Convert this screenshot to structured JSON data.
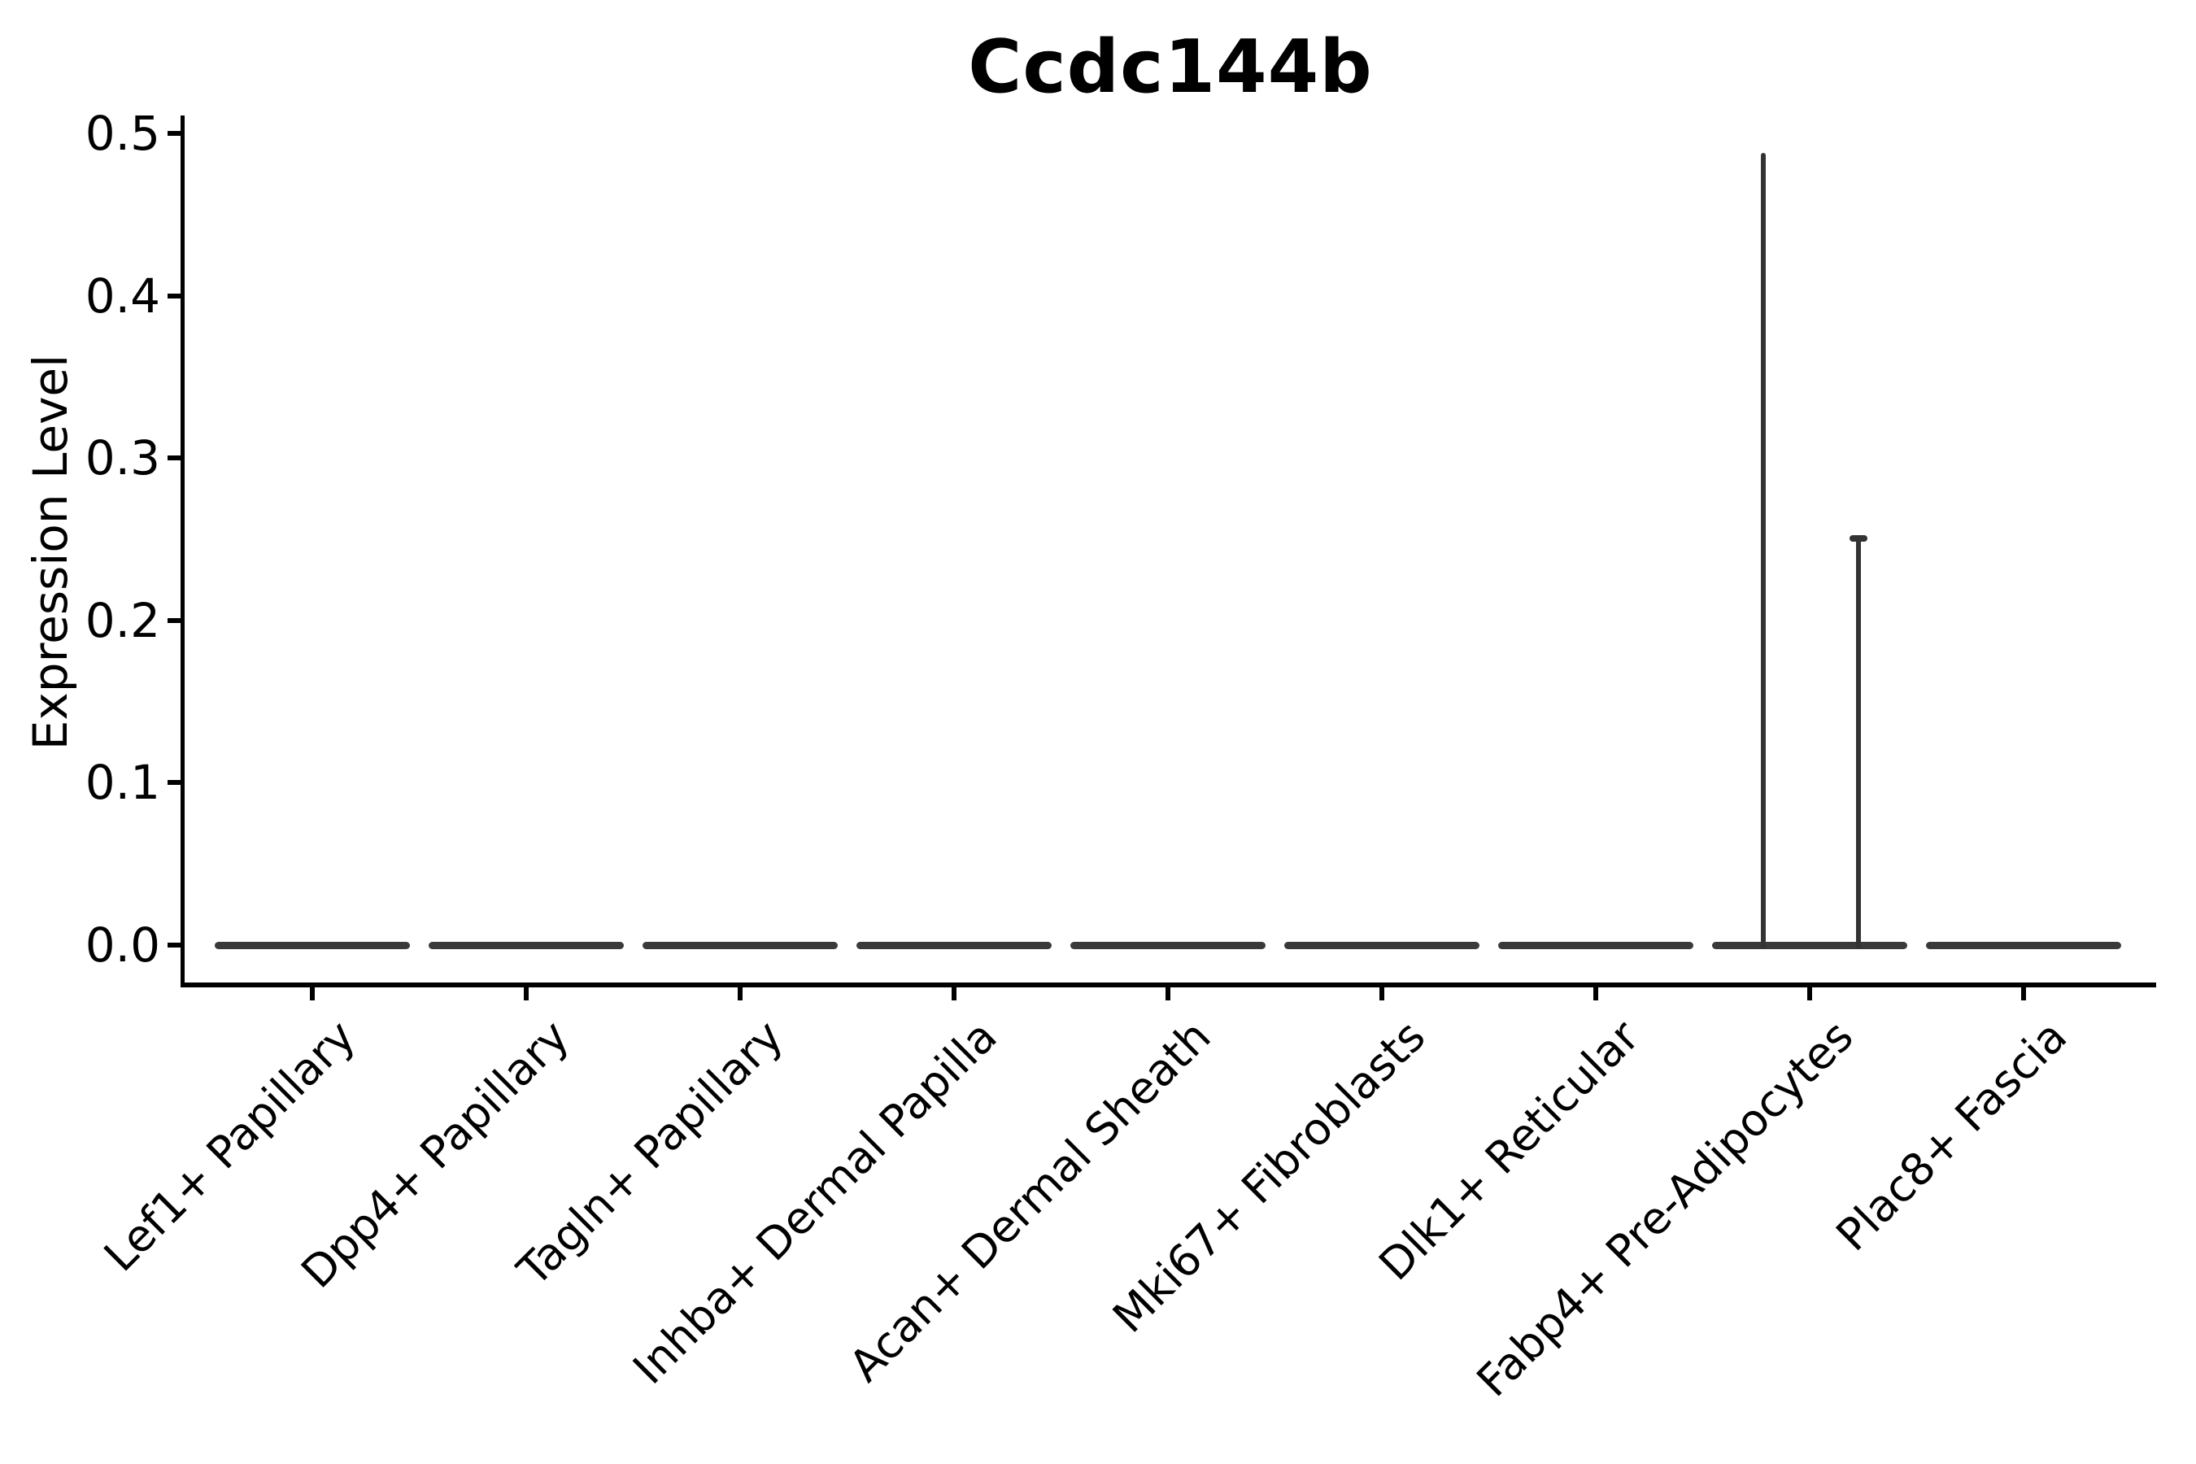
{
  "figure": {
    "title": "Ccdc144b"
  },
  "chart_data": {
    "type": "violin",
    "title": "Ccdc144b",
    "xlabel": "",
    "ylabel": "Expression Level",
    "ylim": [
      0.0,
      0.5
    ],
    "yticks": [
      0.0,
      0.1,
      0.2,
      0.3,
      0.4,
      0.5
    ],
    "ytick_labels": [
      "0.0",
      "0.1",
      "0.2",
      "0.3",
      "0.4",
      "0.5"
    ],
    "grid": false,
    "legend": "none",
    "x_tick_rotation_degrees": 45,
    "categories": [
      "Lef1+ Papillary",
      "Dpp4+ Papillary",
      "Tagln+ Papillary",
      "Inhba+ Dermal Papilla",
      "Acan+ Dermal Sheath",
      "Mki67+ Fibroblasts",
      "Dlk1+ Reticular",
      "Fabp4+ Pre-Adipocytes",
      "Plac8+ Fascia"
    ],
    "violins": [
      {
        "category": "Lef1+ Papillary",
        "baseline_value": 0.0,
        "max_expression": 0.0,
        "spikes": []
      },
      {
        "category": "Dpp4+ Papillary",
        "baseline_value": 0.0,
        "max_expression": 0.0,
        "spikes": []
      },
      {
        "category": "Tagln+ Papillary",
        "baseline_value": 0.0,
        "max_expression": 0.0,
        "spikes": []
      },
      {
        "category": "Inhba+ Dermal Papilla",
        "baseline_value": 0.0,
        "max_expression": 0.0,
        "spikes": []
      },
      {
        "category": "Acan+ Dermal Sheath",
        "baseline_value": 0.0,
        "max_expression": 0.0,
        "spikes": []
      },
      {
        "category": "Mki67+ Fibroblasts",
        "baseline_value": 0.0,
        "max_expression": 0.0,
        "spikes": []
      },
      {
        "category": "Dlk1+ Reticular",
        "baseline_value": 0.0,
        "max_expression": 0.0,
        "spikes": []
      },
      {
        "category": "Fabp4+ Pre-Adipocytes",
        "baseline_value": 0.0,
        "max_expression": 0.49,
        "spikes": [
          {
            "value": 0.488,
            "x_offset": -57,
            "cap": false
          },
          {
            "value": 0.25,
            "x_offset": 60,
            "cap": true
          }
        ]
      },
      {
        "category": "Plac8+ Fascia",
        "baseline_value": 0.0,
        "max_expression": 0.0,
        "spikes": []
      }
    ]
  },
  "colors": {
    "background": "#ffffff",
    "text": "#000000",
    "axis": "#000000",
    "violin_stroke": "#3a3a3a",
    "spike": "#333333"
  }
}
